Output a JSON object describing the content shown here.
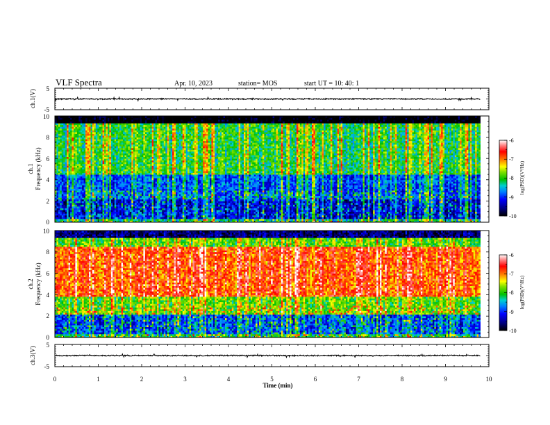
{
  "header": {
    "title": "VLF Spectra",
    "date": "Apr. 10, 2023",
    "station": "station= MOS",
    "start_time": "start  UT  =   10: 40: 1"
  },
  "chart_data": [
    {
      "type": "line",
      "name": "ch1-waveform",
      "ylabel": "ch.1(V)",
      "ylim": [
        -5,
        5
      ],
      "y_ticks": [
        "5",
        "-5"
      ],
      "xlim": [
        0,
        10
      ],
      "x": [
        0,
        9.8
      ],
      "values": [
        0,
        0
      ]
    },
    {
      "type": "heatmap",
      "name": "ch1-spectrogram",
      "ylabel_line1": "ch.1",
      "ylabel_line2": "Frequency (kHz)",
      "ylim": [
        0,
        10
      ],
      "y_ticks": [
        "0",
        "2",
        "4",
        "6",
        "8",
        "10"
      ],
      "xlim": [
        0,
        10
      ],
      "data_end_min": 9.8,
      "colorbar": {
        "label": "log(PSD)(V²/Hz)",
        "range": [
          -10,
          -6
        ],
        "ticks": [
          "-6",
          "-7",
          "-8",
          "-9",
          "-10"
        ]
      }
    },
    {
      "type": "heatmap",
      "name": "ch2-spectrogram",
      "ylabel_line1": "ch.2",
      "ylabel_line2": "Frequency (kHz)",
      "ylim": [
        0,
        10
      ],
      "y_ticks": [
        "0",
        "2",
        "4",
        "6",
        "8",
        "10"
      ],
      "xlim": [
        0,
        10
      ],
      "data_end_min": 9.8,
      "colorbar": {
        "label": "log(PSD)(V²/Hz)",
        "range": [
          -10,
          -6
        ],
        "ticks": [
          "-6",
          "-7",
          "-8",
          "-9",
          "-10"
        ]
      }
    },
    {
      "type": "line",
      "name": "ch3-waveform",
      "ylabel": "ch.3(V)",
      "ylim": [
        -5,
        5
      ],
      "y_ticks": [
        "5",
        "-5"
      ],
      "xlim": [
        0,
        10
      ],
      "x": [
        0,
        9.8
      ],
      "values": [
        0,
        0
      ],
      "xlabel": "Time (min)",
      "x_ticks": [
        "0",
        "1",
        "2",
        "3",
        "4",
        "5",
        "6",
        "7",
        "8",
        "9",
        "10"
      ]
    }
  ]
}
